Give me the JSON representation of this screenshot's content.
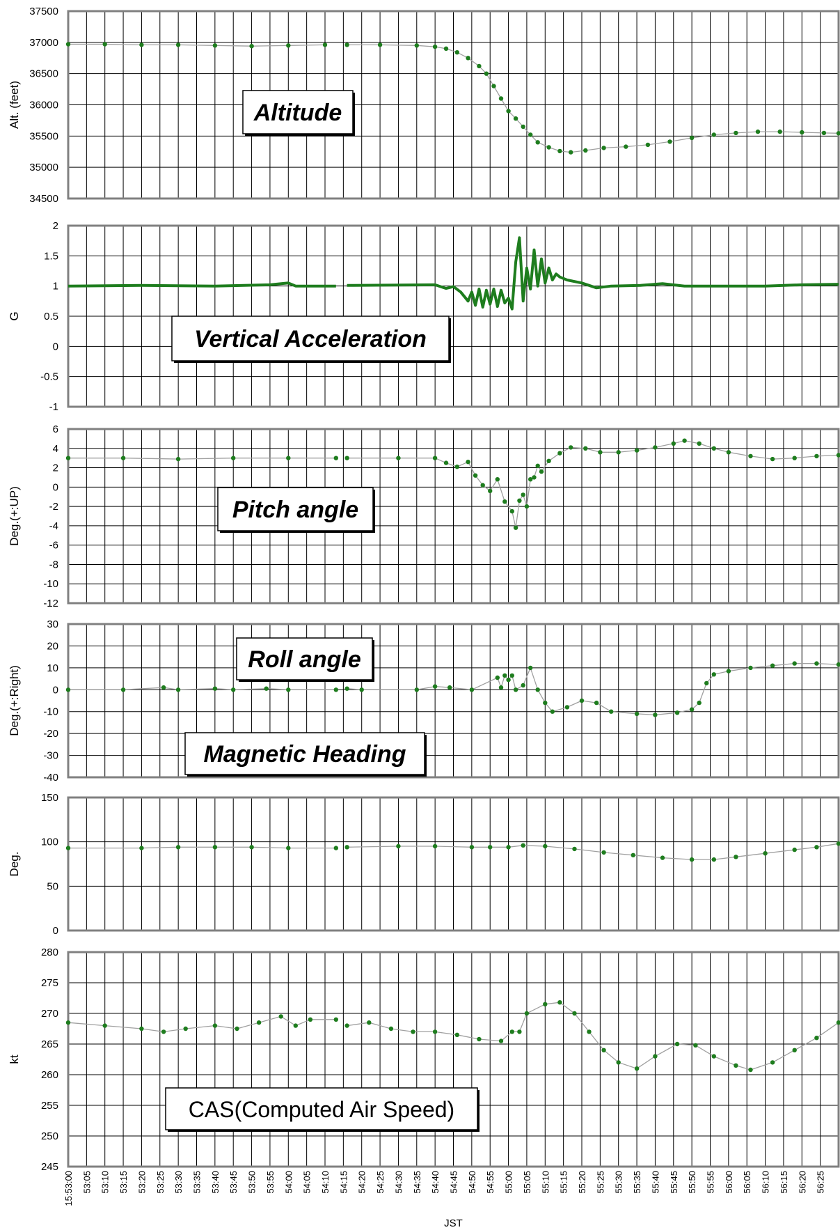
{
  "chart_data": {
    "x_axis": {
      "label": "JST",
      "ticks": [
        "15:53:00",
        "53:05",
        "53:10",
        "53:15",
        "53:20",
        "53:25",
        "53:30",
        "53:35",
        "53:40",
        "53:45",
        "53:50",
        "53:55",
        "54:00",
        "54:05",
        "54:10",
        "54:15",
        "54:20",
        "54:25",
        "54:30",
        "54:35",
        "54:40",
        "54:45",
        "54:50",
        "54:55",
        "55:00",
        "55:05",
        "55:10",
        "55:15",
        "55:20",
        "55:25",
        "55:30",
        "55:35",
        "55:40",
        "55:45",
        "55:50",
        "55:55",
        "56:00",
        "56:05",
        "56:10",
        "56:15",
        "56:20",
        "56:25"
      ],
      "start_seconds": 0,
      "tick_step_seconds": 5,
      "end_seconds": 210,
      "data_gap_seconds": [
        73.5,
        75.0
      ]
    },
    "series_color": "#1e7d1e",
    "panels": [
      {
        "key": "alt",
        "type": "scatter",
        "title": "Altitude",
        "title_style": "bold-italic",
        "ylabel": "Alt. (feet)",
        "ylim": [
          34500,
          37500
        ],
        "ytick_step": 500,
        "yticks": [
          "34500",
          "35000",
          "35500",
          "36000",
          "36500",
          "37000",
          "37500"
        ],
        "points": [
          [
            0,
            36970
          ],
          [
            10,
            36970
          ],
          [
            20,
            36960
          ],
          [
            30,
            36960
          ],
          [
            40,
            36950
          ],
          [
            50,
            36940
          ],
          [
            60,
            36950
          ],
          [
            70,
            36960
          ],
          [
            76,
            36960
          ],
          [
            85,
            36960
          ],
          [
            95,
            36950
          ],
          [
            100,
            36930
          ],
          [
            103,
            36900
          ],
          [
            106,
            36840
          ],
          [
            109,
            36750
          ],
          [
            112,
            36620
          ],
          [
            114,
            36500
          ],
          [
            116,
            36300
          ],
          [
            118,
            36100
          ],
          [
            120,
            35900
          ],
          [
            122,
            35780
          ],
          [
            124,
            35650
          ],
          [
            126,
            35520
          ],
          [
            128,
            35400
          ],
          [
            131,
            35320
          ],
          [
            134,
            35260
          ],
          [
            137,
            35240
          ],
          [
            141,
            35270
          ],
          [
            146,
            35310
          ],
          [
            152,
            35330
          ],
          [
            158,
            35360
          ],
          [
            164,
            35410
          ],
          [
            170,
            35470
          ],
          [
            176,
            35520
          ],
          [
            182,
            35550
          ],
          [
            188,
            35570
          ],
          [
            194,
            35570
          ],
          [
            200,
            35560
          ],
          [
            206,
            35550
          ],
          [
            210,
            35545
          ]
        ]
      },
      {
        "key": "g",
        "type": "line",
        "title": "Vertical Acceleration",
        "title_style": "bold-italic",
        "ylabel": "G",
        "ylim": [
          -1,
          2
        ],
        "ytick_step": 0.5,
        "yticks": [
          "-1",
          "-0.5",
          "0",
          "0.5",
          "1",
          "1.5",
          "2"
        ],
        "points": [
          [
            0,
            1.0
          ],
          [
            20,
            1.01
          ],
          [
            40,
            1.0
          ],
          [
            55,
            1.02
          ],
          [
            60,
            1.05
          ],
          [
            62,
            1.0
          ],
          [
            73,
            1.0
          ],
          [
            76,
            1.01
          ],
          [
            100,
            1.02
          ],
          [
            103,
            0.96
          ],
          [
            105,
            0.99
          ],
          [
            107,
            0.9
          ],
          [
            109,
            0.75
          ],
          [
            110,
            0.9
          ],
          [
            111,
            0.68
          ],
          [
            112,
            0.95
          ],
          [
            113,
            0.65
          ],
          [
            114,
            0.93
          ],
          [
            115,
            0.7
          ],
          [
            116,
            0.95
          ],
          [
            117,
            0.66
          ],
          [
            118,
            0.93
          ],
          [
            119,
            0.72
          ],
          [
            120,
            0.8
          ],
          [
            121,
            0.62
          ],
          [
            122,
            1.4
          ],
          [
            123,
            1.8
          ],
          [
            124,
            0.75
          ],
          [
            125,
            1.3
          ],
          [
            126,
            0.95
          ],
          [
            127,
            1.6
          ],
          [
            128,
            1.0
          ],
          [
            129,
            1.45
          ],
          [
            130,
            1.05
          ],
          [
            131,
            1.3
          ],
          [
            132,
            1.1
          ],
          [
            133,
            1.2
          ],
          [
            134,
            1.15
          ],
          [
            136,
            1.1
          ],
          [
            140,
            1.05
          ],
          [
            144,
            0.97
          ],
          [
            148,
            1.0
          ],
          [
            156,
            1.01
          ],
          [
            162,
            1.04
          ],
          [
            168,
            1.0
          ],
          [
            180,
            1.0
          ],
          [
            190,
            1.0
          ],
          [
            200,
            1.02
          ],
          [
            210,
            1.03
          ]
        ]
      },
      {
        "key": "pitch",
        "type": "scatter",
        "title": "Pitch angle",
        "title_style": "bold-italic",
        "ylabel": "Deg.(+:UP)",
        "ylim": [
          -12,
          6
        ],
        "ytick_step": 2,
        "yticks": [
          "-12",
          "-10",
          "-8",
          "-6",
          "-4",
          "-2",
          "0",
          "2",
          "4",
          "6"
        ],
        "points": [
          [
            0,
            3.0
          ],
          [
            15,
            3.0
          ],
          [
            30,
            2.9
          ],
          [
            45,
            3.0
          ],
          [
            60,
            3.0
          ],
          [
            73,
            3.0
          ],
          [
            76,
            3.0
          ],
          [
            90,
            3.0
          ],
          [
            100,
            3.0
          ],
          [
            103,
            2.5
          ],
          [
            106,
            2.1
          ],
          [
            109,
            2.6
          ],
          [
            111,
            1.2
          ],
          [
            113,
            0.2
          ],
          [
            115,
            -0.4
          ],
          [
            117,
            0.8
          ],
          [
            119,
            -1.5
          ],
          [
            121,
            -2.5
          ],
          [
            122,
            -4.2
          ],
          [
            123,
            -1.4
          ],
          [
            124,
            -0.8
          ],
          [
            125,
            -2.0
          ],
          [
            126,
            0.8
          ],
          [
            127,
            1.0
          ],
          [
            128,
            2.2
          ],
          [
            129,
            1.6
          ],
          [
            131,
            2.7
          ],
          [
            134,
            3.5
          ],
          [
            137,
            4.1
          ],
          [
            141,
            4.0
          ],
          [
            145,
            3.6
          ],
          [
            150,
            3.6
          ],
          [
            155,
            3.8
          ],
          [
            160,
            4.1
          ],
          [
            165,
            4.5
          ],
          [
            168,
            4.8
          ],
          [
            172,
            4.5
          ],
          [
            176,
            4.0
          ],
          [
            180,
            3.6
          ],
          [
            186,
            3.2
          ],
          [
            192,
            2.9
          ],
          [
            198,
            3.0
          ],
          [
            204,
            3.2
          ],
          [
            210,
            3.3
          ]
        ]
      },
      {
        "key": "roll",
        "type": "scatter",
        "title": "Roll angle",
        "title_style": "bold-italic",
        "ylabel": "Deg.(+:Right)",
        "ylim": [
          -40,
          30
        ],
        "ytick_step": 10,
        "yticks": [
          "-40",
          "-30",
          "-20",
          "-10",
          "0",
          "10",
          "20",
          "30"
        ],
        "points": [
          [
            0,
            0.0
          ],
          [
            15,
            0.0
          ],
          [
            26,
            1.0
          ],
          [
            30,
            0.0
          ],
          [
            40,
            0.5
          ],
          [
            45,
            0.0
          ],
          [
            54,
            0.5
          ],
          [
            60,
            0.0
          ],
          [
            73,
            0.0
          ],
          [
            76,
            0.5
          ],
          [
            80,
            0.0
          ],
          [
            95,
            0.0
          ],
          [
            100,
            1.5
          ],
          [
            104,
            1.0
          ],
          [
            110,
            0.0
          ],
          [
            117,
            5.5
          ],
          [
            118,
            1.0
          ],
          [
            119,
            6.5
          ],
          [
            120,
            4.5
          ],
          [
            121,
            6.5
          ],
          [
            122,
            0.0
          ],
          [
            124,
            2.0
          ],
          [
            126,
            10.0
          ],
          [
            128,
            0.0
          ],
          [
            130,
            -6.0
          ],
          [
            132,
            -10.0
          ],
          [
            136,
            -8.0
          ],
          [
            140,
            -5.0
          ],
          [
            144,
            -6.0
          ],
          [
            148,
            -10.0
          ],
          [
            155,
            -11.0
          ],
          [
            160,
            -11.5
          ],
          [
            166,
            -10.5
          ],
          [
            170,
            -9.0
          ],
          [
            172,
            -6.0
          ],
          [
            174,
            3.0
          ],
          [
            176,
            7.0
          ],
          [
            180,
            8.5
          ],
          [
            186,
            10.0
          ],
          [
            192,
            11.0
          ],
          [
            198,
            12.0
          ],
          [
            204,
            12.0
          ],
          [
            210,
            11.5
          ]
        ]
      },
      {
        "key": "hdg",
        "type": "scatter",
        "title": "Magnetic Heading",
        "title_style": "bold-italic",
        "ylabel": "Deg.",
        "ylim": [
          0,
          150
        ],
        "ytick_step": 50,
        "yticks": [
          "0",
          "50",
          "100",
          "150"
        ],
        "points": [
          [
            0,
            93
          ],
          [
            20,
            93
          ],
          [
            30,
            94
          ],
          [
            40,
            94
          ],
          [
            50,
            94
          ],
          [
            60,
            93
          ],
          [
            73,
            93
          ],
          [
            76,
            94
          ],
          [
            90,
            95
          ],
          [
            100,
            95
          ],
          [
            110,
            94
          ],
          [
            115,
            94
          ],
          [
            120,
            94
          ],
          [
            124,
            96
          ],
          [
            130,
            95
          ],
          [
            138,
            92
          ],
          [
            146,
            88
          ],
          [
            154,
            85
          ],
          [
            162,
            82
          ],
          [
            170,
            80
          ],
          [
            176,
            80
          ],
          [
            182,
            83
          ],
          [
            190,
            87
          ],
          [
            198,
            91
          ],
          [
            204,
            94
          ],
          [
            210,
            98
          ]
        ]
      },
      {
        "key": "cas",
        "type": "scatter",
        "title": "CAS(Computed Air Speed)",
        "title_style": "plain",
        "ylabel": "kt",
        "ylim": [
          245,
          280
        ],
        "ytick_step": 5,
        "yticks": [
          "245",
          "250",
          "255",
          "260",
          "265",
          "270",
          "275",
          "280"
        ],
        "points": [
          [
            0,
            268.5
          ],
          [
            10,
            268
          ],
          [
            20,
            267.5
          ],
          [
            26,
            267
          ],
          [
            32,
            267.5
          ],
          [
            40,
            268
          ],
          [
            46,
            267.5
          ],
          [
            52,
            268.5
          ],
          [
            58,
            269.5
          ],
          [
            62,
            268
          ],
          [
            66,
            269
          ],
          [
            73,
            269
          ],
          [
            76,
            268
          ],
          [
            82,
            268.5
          ],
          [
            88,
            267.5
          ],
          [
            94,
            267
          ],
          [
            100,
            267
          ],
          [
            106,
            266.5
          ],
          [
            112,
            265.8
          ],
          [
            118,
            265.5
          ],
          [
            121,
            267
          ],
          [
            123,
            267
          ],
          [
            125,
            270
          ],
          [
            130,
            271.5
          ],
          [
            134,
            271.8
          ],
          [
            138,
            270
          ],
          [
            142,
            267
          ],
          [
            146,
            264
          ],
          [
            150,
            262
          ],
          [
            155,
            261
          ],
          [
            160,
            263
          ],
          [
            166,
            265
          ],
          [
            171,
            264.8
          ],
          [
            176,
            263
          ],
          [
            182,
            261.5
          ],
          [
            186,
            260.8
          ],
          [
            192,
            262
          ],
          [
            198,
            264
          ],
          [
            204,
            266
          ],
          [
            210,
            268.5
          ]
        ]
      }
    ]
  }
}
